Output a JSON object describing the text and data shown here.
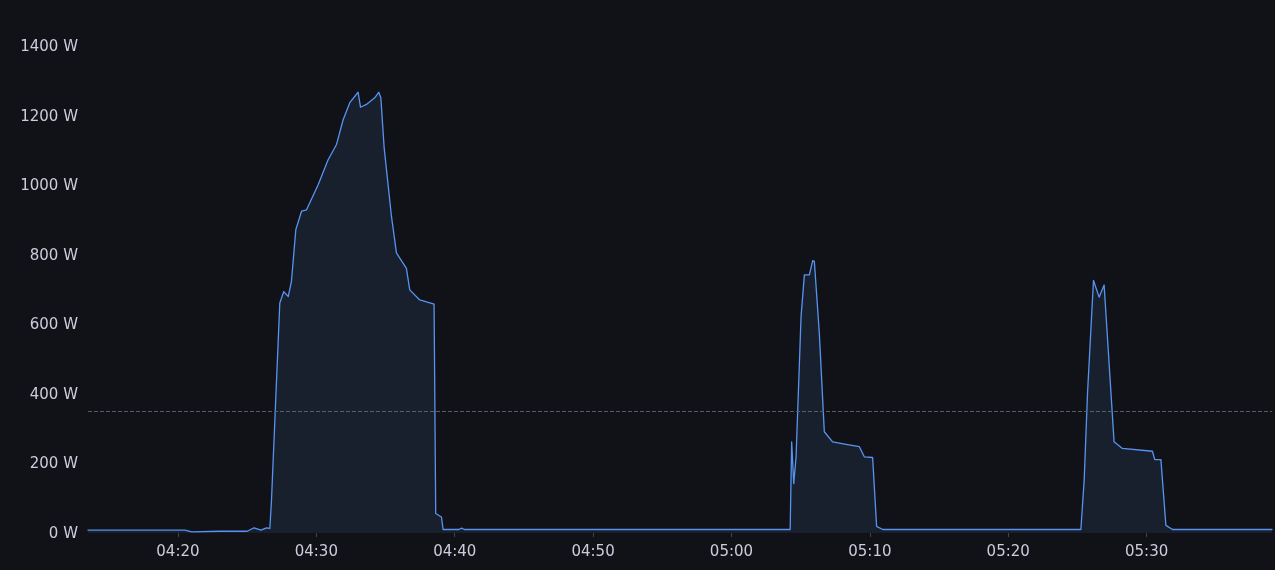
{
  "chart_data": {
    "type": "area",
    "x": [
      4.225,
      4.3417,
      4.35,
      4.3833,
      4.4167,
      4.425,
      4.4333,
      4.44,
      4.444,
      4.446,
      4.456,
      4.4608,
      4.4662,
      4.47,
      4.4753,
      4.4822,
      4.4882,
      4.5022,
      4.5142,
      4.5243,
      4.5323,
      4.5403,
      4.5503,
      4.5532,
      4.5603,
      4.5703,
      4.5752,
      4.5777,
      4.5817,
      4.5905,
      4.5965,
      4.6085,
      4.6125,
      4.6245,
      4.6418,
      4.6438,
      4.6507,
      4.6527,
      4.6717,
      4.675,
      4.6783,
      5.0707,
      5.0725,
      5.075,
      5.0778,
      5.0838,
      5.0878,
      5.0938,
      5.0978,
      5.0998,
      5.1058,
      5.1118,
      5.1218,
      5.138,
      5.154,
      5.16,
      5.17,
      5.1748,
      5.1822,
      5.4208,
      5.4248,
      5.4288,
      5.436,
      5.4428,
      5.4488,
      5.4608,
      5.4708,
      5.507,
      5.5098,
      5.5172,
      5.5232,
      5.5312,
      5.651
    ],
    "series": [
      {
        "color": "#5794f2",
        "values": [
          8,
          8,
          3,
          5,
          5,
          15,
          8,
          15,
          13,
          94,
          661,
          694,
          680,
          723,
          872,
          925,
          929,
          1001,
          1073,
          1117,
          1188,
          1237,
          1267,
          1224,
          1232,
          1251,
          1267,
          1251,
          1107,
          910,
          805,
          761,
          699,
          670,
          658,
          56,
          46,
          10,
          10,
          14,
          10,
          10,
          262,
          142,
          219,
          622,
          742,
          742,
          783,
          781,
          574,
          291,
          262,
          255,
          248,
          219,
          217,
          19,
          10,
          10,
          152,
          401,
          726,
          678,
          713,
          262,
          243,
          235,
          211,
          211,
          22,
          10,
          10
        ]
      }
    ],
    "xlim": [
      4.225,
      5.651
    ],
    "xticks": [
      {
        "value": 4.3333,
        "label": "04:20"
      },
      {
        "value": 4.5,
        "label": "04:30"
      },
      {
        "value": 4.6667,
        "label": "04:40"
      },
      {
        "value": 4.8333,
        "label": "04:50"
      },
      {
        "value": 5.0,
        "label": "05:00"
      },
      {
        "value": 5.1667,
        "label": "05:10"
      },
      {
        "value": 5.3333,
        "label": "05:20"
      },
      {
        "value": 5.5,
        "label": "05:30"
      }
    ],
    "ylim": [
      0,
      1400
    ],
    "yticks": [
      {
        "value": 0,
        "label": "0 W"
      },
      {
        "value": 200,
        "label": "200 W"
      },
      {
        "value": 400,
        "label": "400 W"
      },
      {
        "value": 600,
        "label": "600 W"
      },
      {
        "value": 800,
        "label": "800 W"
      },
      {
        "value": 1000,
        "label": "1000 W"
      },
      {
        "value": 1200,
        "label": "1200 W"
      },
      {
        "value": 1400,
        "label": "1400 W"
      }
    ],
    "ref_lines": [
      {
        "axis": "y",
        "value": 350,
        "color": "#5a5d66",
        "line_style": "dashed"
      }
    ],
    "grid": false,
    "marker": "none",
    "line_style": "solid"
  }
}
